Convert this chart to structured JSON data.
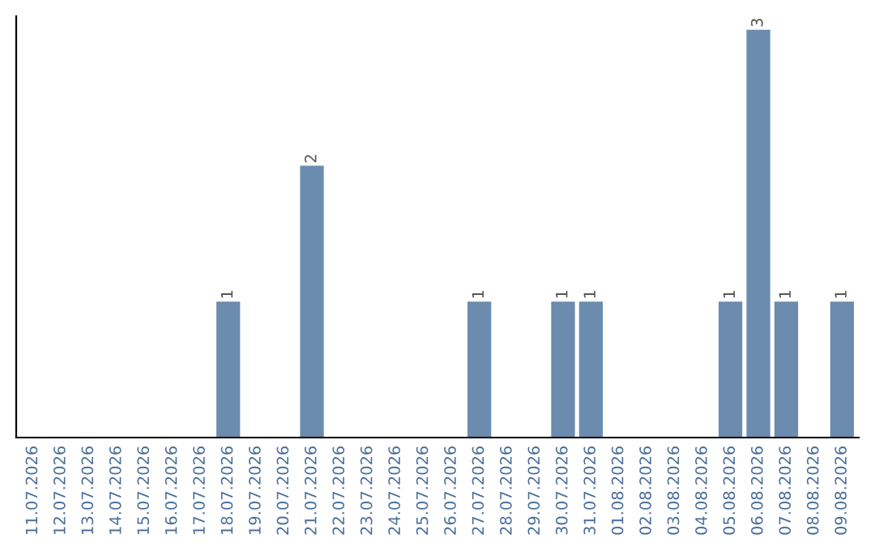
{
  "chart_data": {
    "type": "bar",
    "categories": [
      "11.07.2026",
      "12.07.2026",
      "13.07.2026",
      "14.07.2026",
      "15.07.2026",
      "16.07.2026",
      "17.07.2026",
      "18.07.2026",
      "19.07.2026",
      "20.07.2026",
      "21.07.2026",
      "22.07.2026",
      "23.07.2026",
      "24.07.2026",
      "25.07.2026",
      "26.07.2026",
      "27.07.2026",
      "28.07.2026",
      "29.07.2026",
      "30.07.2026",
      "31.07.2026",
      "01.08.2026",
      "02.08.2026",
      "03.08.2026",
      "04.08.2026",
      "05.08.2026",
      "06.08.2026",
      "07.08.2026",
      "08.08.2026",
      "09.08.2026"
    ],
    "values": [
      0,
      0,
      0,
      0,
      0,
      0,
      0,
      1,
      0,
      0,
      2,
      0,
      0,
      0,
      0,
      0,
      1,
      0,
      0,
      1,
      1,
      0,
      0,
      0,
      0,
      1,
      3,
      1,
      0,
      1
    ],
    "value_labels": [
      null,
      null,
      null,
      null,
      null,
      null,
      null,
      "1",
      null,
      null,
      "2",
      null,
      null,
      null,
      null,
      null,
      "1",
      null,
      null,
      "1",
      "1",
      null,
      null,
      null,
      null,
      "1",
      "3",
      "1",
      null,
      "1"
    ],
    "color": "#6b8cae",
    "ylim": [
      0,
      3.1
    ],
    "tick_labels": "x",
    "grid": false,
    "legend": false
  }
}
